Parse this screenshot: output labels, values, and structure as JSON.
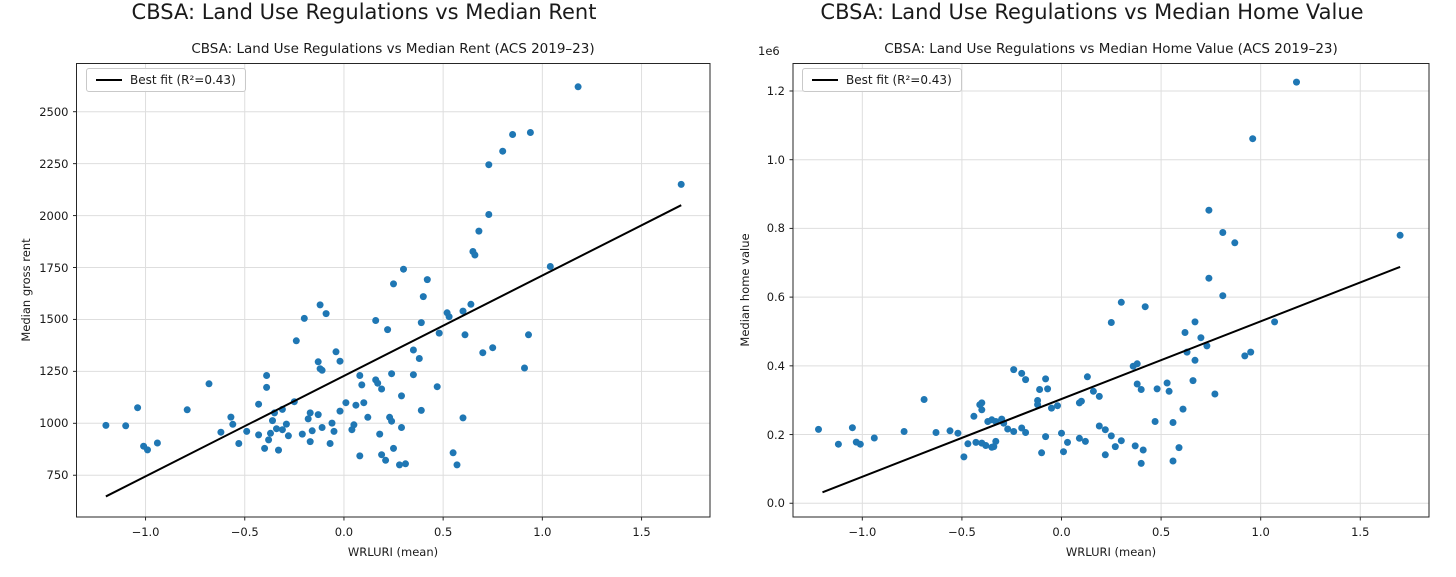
{
  "figure": {
    "background": "#ffffff"
  },
  "colors": {
    "dot": "#1f77b4",
    "fit_line": "#000000",
    "grid": "#dedede",
    "spine": "#262626",
    "text": "#1a1a1a",
    "legend_border": "#c9c9c9"
  },
  "chart_data": [
    {
      "type": "scatter",
      "suptitle": "CBSA: Land Use Regulations vs Median Rent",
      "title": "CBSA: Land Use Regulations vs Median Rent (ACS 2019–23)",
      "xlabel": "WRLURI (mean)",
      "ylabel": "Median gross rent",
      "legend_label": "Best fit (R²=0.43)",
      "legend_position": "upper left",
      "grid": true,
      "offset_text": "",
      "xlim": [
        -1.348,
        1.845
      ],
      "ylim": [
        549,
        2732
      ],
      "xticks": {
        "values": [
          -1.0,
          -0.5,
          0.0,
          0.5,
          1.0,
          1.5
        ],
        "labels": [
          "−1.0",
          "−0.5",
          "0.0",
          "0.5",
          "1.0",
          "1.5"
        ]
      },
      "yticks": {
        "values": [
          750,
          1000,
          1250,
          1500,
          1750,
          2000,
          2250,
          2500
        ],
        "labels": [
          "750",
          "1000",
          "1250",
          "1500",
          "1750",
          "2000",
          "2250",
          "2500"
        ]
      },
      "fit_line": [
        [
          -1.2,
          648
        ],
        [
          1.7,
          2050
        ]
      ],
      "points": [
        [
          -1.2,
          990
        ],
        [
          -1.1,
          988
        ],
        [
          -1.04,
          1075
        ],
        [
          -1.01,
          890
        ],
        [
          -0.99,
          872
        ],
        [
          -0.94,
          905
        ],
        [
          -0.79,
          1065
        ],
        [
          -0.68,
          1190
        ],
        [
          -0.62,
          957
        ],
        [
          -0.57,
          1030
        ],
        [
          -0.56,
          995
        ],
        [
          -0.53,
          903
        ],
        [
          -0.49,
          961
        ],
        [
          -0.43,
          1092
        ],
        [
          -0.43,
          944
        ],
        [
          -0.4,
          879
        ],
        [
          -0.39,
          1230
        ],
        [
          -0.39,
          1173
        ],
        [
          -0.38,
          920
        ],
        [
          -0.37,
          952
        ],
        [
          -0.36,
          1013
        ],
        [
          -0.35,
          1050
        ],
        [
          -0.34,
          974
        ],
        [
          -0.33,
          871
        ],
        [
          -0.31,
          1067
        ],
        [
          -0.31,
          969
        ],
        [
          -0.29,
          996
        ],
        [
          -0.28,
          940
        ],
        [
          -0.25,
          1104
        ],
        [
          -0.24,
          1397
        ],
        [
          -0.21,
          948
        ],
        [
          -0.2,
          1505
        ],
        [
          -0.18,
          1021
        ],
        [
          -0.17,
          1050
        ],
        [
          -0.17,
          912
        ],
        [
          -0.16,
          964
        ],
        [
          -0.13,
          1296
        ],
        [
          -0.13,
          1042
        ],
        [
          -0.12,
          1570
        ],
        [
          -0.12,
          1263
        ],
        [
          -0.11,
          1255
        ],
        [
          -0.11,
          980
        ],
        [
          -0.09,
          1528
        ],
        [
          -0.07,
          903
        ],
        [
          -0.06,
          1001
        ],
        [
          -0.05,
          961
        ],
        [
          -0.04,
          1344
        ],
        [
          -0.02,
          1299
        ],
        [
          -0.02,
          1059
        ],
        [
          0.01,
          1099
        ],
        [
          0.04,
          969
        ],
        [
          0.05,
          993
        ],
        [
          0.06,
          1087
        ],
        [
          0.08,
          1230
        ],
        [
          0.08,
          843
        ],
        [
          0.09,
          1185
        ],
        [
          0.1,
          1099
        ],
        [
          0.12,
          1029
        ],
        [
          0.16,
          1495
        ],
        [
          0.16,
          1209
        ],
        [
          0.17,
          1193
        ],
        [
          0.18,
          948
        ],
        [
          0.19,
          1165
        ],
        [
          0.19,
          849
        ],
        [
          0.21,
          822
        ],
        [
          0.22,
          1451
        ],
        [
          0.23,
          1029
        ],
        [
          0.24,
          1239
        ],
        [
          0.24,
          1010
        ],
        [
          0.25,
          1671
        ],
        [
          0.25,
          879
        ],
        [
          0.28,
          800
        ],
        [
          0.29,
          1132
        ],
        [
          0.29,
          980
        ],
        [
          0.3,
          1742
        ],
        [
          0.31,
          805
        ],
        [
          0.35,
          1353
        ],
        [
          0.35,
          1234
        ],
        [
          0.38,
          1312
        ],
        [
          0.39,
          1485
        ],
        [
          0.39,
          1062
        ],
        [
          0.4,
          1610
        ],
        [
          0.42,
          1692
        ],
        [
          0.47,
          1176
        ],
        [
          0.48,
          1434
        ],
        [
          0.52,
          1532
        ],
        [
          0.53,
          1513
        ],
        [
          0.55,
          858
        ],
        [
          0.57,
          800
        ],
        [
          0.6,
          1540
        ],
        [
          0.6,
          1026
        ],
        [
          0.61,
          1426
        ],
        [
          0.64,
          1573
        ],
        [
          0.65,
          1827
        ],
        [
          0.66,
          1810
        ],
        [
          0.68,
          1925
        ],
        [
          0.7,
          1340
        ],
        [
          0.73,
          2245
        ],
        [
          0.73,
          2005
        ],
        [
          0.75,
          1364
        ],
        [
          0.8,
          2310
        ],
        [
          0.85,
          2390
        ],
        [
          0.91,
          1266
        ],
        [
          0.93,
          1426
        ],
        [
          0.94,
          2400
        ],
        [
          1.04,
          1755
        ],
        [
          1.18,
          2620
        ],
        [
          1.7,
          2150
        ]
      ]
    },
    {
      "type": "scatter",
      "suptitle": "CBSA: Land Use Regulations vs Median Home Value",
      "title": "CBSA: Land Use Regulations vs Median Home Value (ACS 2019–23)",
      "xlabel": "WRLURI (mean)",
      "ylabel": "Median home value",
      "legend_label": "Best fit (R²=0.43)",
      "legend_position": "upper left",
      "grid": true,
      "offset_text": "1e6",
      "xlim": [
        -1.348,
        1.845
      ],
      "ylim": [
        -40000,
        1280000
      ],
      "xticks": {
        "values": [
          -1.0,
          -0.5,
          0.0,
          0.5,
          1.0,
          1.5
        ],
        "labels": [
          "−1.0",
          "−0.5",
          "0.0",
          "0.5",
          "1.0",
          "1.5"
        ]
      },
      "yticks": {
        "values": [
          0,
          200000,
          400000,
          600000,
          800000,
          1000000,
          1200000
        ],
        "labels": [
          "0.0",
          "0.2",
          "0.4",
          "0.6",
          "0.8",
          "1.0",
          "1.2"
        ]
      },
      "fit_line": [
        [
          -1.2,
          32000
        ],
        [
          1.7,
          688000
        ]
      ],
      "points": [
        [
          -1.22,
          215000
        ],
        [
          -1.12,
          172000
        ],
        [
          -1.05,
          220000
        ],
        [
          -1.03,
          178000
        ],
        [
          -1.01,
          172000
        ],
        [
          -0.94,
          190000
        ],
        [
          -0.79,
          209000
        ],
        [
          -0.69,
          302000
        ],
        [
          -0.63,
          206000
        ],
        [
          -0.56,
          211000
        ],
        [
          -0.52,
          204000
        ],
        [
          -0.49,
          135000
        ],
        [
          -0.47,
          173000
        ],
        [
          -0.44,
          253000
        ],
        [
          -0.43,
          177000
        ],
        [
          -0.41,
          287000
        ],
        [
          -0.4,
          292000
        ],
        [
          -0.4,
          272000
        ],
        [
          -0.4,
          175000
        ],
        [
          -0.38,
          168000
        ],
        [
          -0.37,
          238000
        ],
        [
          -0.35,
          243000
        ],
        [
          -0.35,
          163000
        ],
        [
          -0.34,
          165000
        ],
        [
          -0.33,
          238000
        ],
        [
          -0.33,
          180000
        ],
        [
          -0.3,
          245000
        ],
        [
          -0.29,
          233000
        ],
        [
          -0.27,
          216000
        ],
        [
          -0.24,
          389000
        ],
        [
          -0.24,
          209000
        ],
        [
          -0.2,
          378000
        ],
        [
          -0.2,
          219000
        ],
        [
          -0.18,
          360000
        ],
        [
          -0.18,
          206000
        ],
        [
          -0.12,
          299000
        ],
        [
          -0.12,
          287000
        ],
        [
          -0.11,
          331000
        ],
        [
          -0.1,
          147000
        ],
        [
          -0.08,
          362000
        ],
        [
          -0.08,
          194000
        ],
        [
          -0.07,
          333000
        ],
        [
          -0.05,
          277000
        ],
        [
          -0.02,
          284000
        ],
        [
          0.0,
          204000
        ],
        [
          0.01,
          150000
        ],
        [
          0.03,
          177000
        ],
        [
          0.09,
          292000
        ],
        [
          0.09,
          189000
        ],
        [
          0.1,
          297000
        ],
        [
          0.12,
          180000
        ],
        [
          0.13,
          368000
        ],
        [
          0.16,
          326000
        ],
        [
          0.19,
          311000
        ],
        [
          0.19,
          225000
        ],
        [
          0.22,
          214000
        ],
        [
          0.22,
          141000
        ],
        [
          0.25,
          526000
        ],
        [
          0.25,
          196000
        ],
        [
          0.27,
          165000
        ],
        [
          0.3,
          585000
        ],
        [
          0.3,
          182000
        ],
        [
          0.36,
          399000
        ],
        [
          0.37,
          167000
        ],
        [
          0.38,
          406000
        ],
        [
          0.38,
          347000
        ],
        [
          0.4,
          331000
        ],
        [
          0.4,
          116000
        ],
        [
          0.41,
          155000
        ],
        [
          0.42,
          572000
        ],
        [
          0.47,
          238000
        ],
        [
          0.48,
          333000
        ],
        [
          0.53,
          350000
        ],
        [
          0.54,
          326000
        ],
        [
          0.56,
          235000
        ],
        [
          0.56,
          123000
        ],
        [
          0.59,
          162000
        ],
        [
          0.61,
          274000
        ],
        [
          0.62,
          497000
        ],
        [
          0.63,
          440000
        ],
        [
          0.66,
          357000
        ],
        [
          0.67,
          528000
        ],
        [
          0.67,
          416000
        ],
        [
          0.7,
          482000
        ],
        [
          0.73,
          458000
        ],
        [
          0.74,
          853000
        ],
        [
          0.74,
          655000
        ],
        [
          0.77,
          318000
        ],
        [
          0.81,
          788000
        ],
        [
          0.81,
          604000
        ],
        [
          0.87,
          758000
        ],
        [
          0.92,
          429000
        ],
        [
          0.95,
          440000
        ],
        [
          0.96,
          1061000
        ],
        [
          1.07,
          528000
        ],
        [
          1.18,
          1226000
        ],
        [
          1.7,
          780000
        ]
      ]
    }
  ]
}
